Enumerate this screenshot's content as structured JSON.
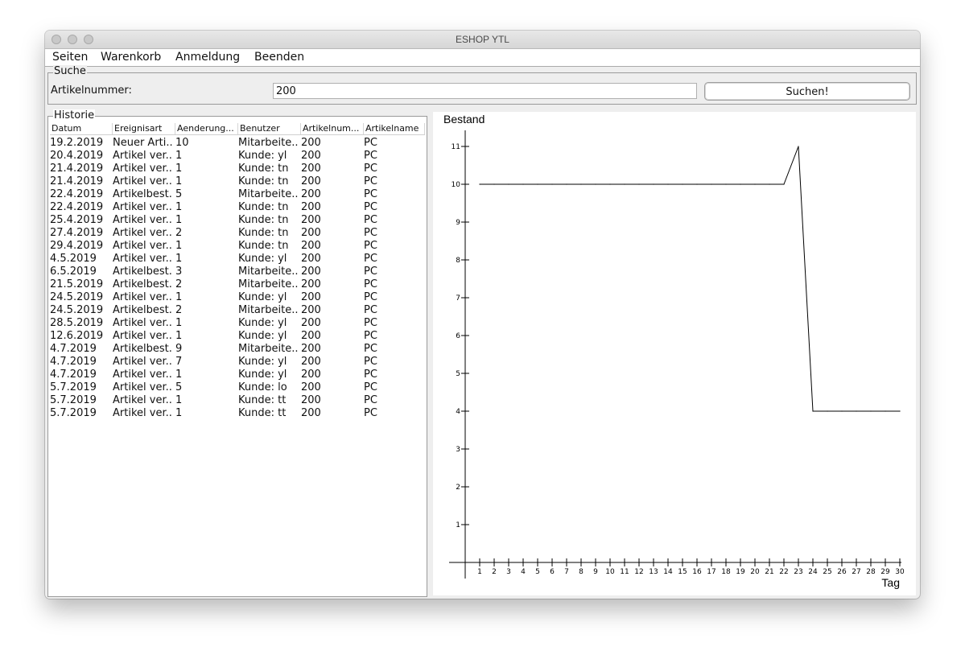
{
  "window": {
    "title": "ESHOP YTL"
  },
  "menu": [
    "Seiten",
    "Warenkorb",
    "Anmeldung",
    "Beenden"
  ],
  "search": {
    "group_title": "Suche",
    "label": "Artikelnummer:",
    "value": "200",
    "button": "Suchen!"
  },
  "history": {
    "group_title": "Historie",
    "columns": [
      "Datum",
      "Ereignisart",
      "Aenderung...",
      "Benutzer",
      "Artikelnum...",
      "Artikelname"
    ],
    "rows": [
      [
        "19.2.2019",
        "Neuer Arti...",
        "10",
        "Mitarbeite...",
        "200",
        "PC"
      ],
      [
        "20.4.2019",
        "Artikel ver...",
        "1",
        "Kunde: yl",
        "200",
        "PC"
      ],
      [
        "21.4.2019",
        "Artikel ver...",
        "1",
        "Kunde: tn",
        "200",
        "PC"
      ],
      [
        "21.4.2019",
        "Artikel ver...",
        "1",
        "Kunde: tn",
        "200",
        "PC"
      ],
      [
        "22.4.2019",
        "Artikelbest...",
        "5",
        "Mitarbeite...",
        "200",
        "PC"
      ],
      [
        "22.4.2019",
        "Artikel ver...",
        "1",
        "Kunde: tn",
        "200",
        "PC"
      ],
      [
        "25.4.2019",
        "Artikel ver...",
        "1",
        "Kunde: tn",
        "200",
        "PC"
      ],
      [
        "27.4.2019",
        "Artikel ver...",
        "2",
        "Kunde: tn",
        "200",
        "PC"
      ],
      [
        "29.4.2019",
        "Artikel ver...",
        "1",
        "Kunde: tn",
        "200",
        "PC"
      ],
      [
        "4.5.2019",
        "Artikel ver...",
        "1",
        "Kunde: yl",
        "200",
        "PC"
      ],
      [
        "6.5.2019",
        "Artikelbest...",
        "3",
        "Mitarbeite...",
        "200",
        "PC"
      ],
      [
        "21.5.2019",
        "Artikelbest...",
        "2",
        "Mitarbeite...",
        "200",
        "PC"
      ],
      [
        "24.5.2019",
        "Artikel ver...",
        "1",
        "Kunde: yl",
        "200",
        "PC"
      ],
      [
        "24.5.2019",
        "Artikelbest...",
        "2",
        "Mitarbeite...",
        "200",
        "PC"
      ],
      [
        "28.5.2019",
        "Artikel ver...",
        "1",
        "Kunde: yl",
        "200",
        "PC"
      ],
      [
        "12.6.2019",
        "Artikel ver...",
        "1",
        "Kunde: yl",
        "200",
        "PC"
      ],
      [
        "4.7.2019",
        "Artikelbest...",
        "9",
        "Mitarbeite...",
        "200",
        "PC"
      ],
      [
        "4.7.2019",
        "Artikel ver...",
        "7",
        "Kunde: yl",
        "200",
        "PC"
      ],
      [
        "4.7.2019",
        "Artikel ver...",
        "1",
        "Kunde: yl",
        "200",
        "PC"
      ],
      [
        "5.7.2019",
        "Artikel ver...",
        "5",
        "Kunde: lo",
        "200",
        "PC"
      ],
      [
        "5.7.2019",
        "Artikel ver...",
        "1",
        "Kunde: tt",
        "200",
        "PC"
      ],
      [
        "5.7.2019",
        "Artikel ver...",
        "1",
        "Kunde: tt",
        "200",
        "PC"
      ]
    ]
  },
  "chart_data": {
    "type": "line",
    "title": "",
    "ylabel": "Bestand",
    "xlabel": "Tag",
    "xlim": [
      0,
      30
    ],
    "ylim": [
      0,
      11
    ],
    "x_ticks": [
      1,
      2,
      3,
      4,
      5,
      6,
      7,
      8,
      9,
      10,
      11,
      12,
      13,
      14,
      15,
      16,
      17,
      18,
      19,
      20,
      21,
      22,
      23,
      24,
      25,
      26,
      27,
      28,
      29,
      30
    ],
    "y_ticks": [
      1,
      2,
      3,
      4,
      5,
      6,
      7,
      8,
      9,
      10,
      11
    ],
    "series": [
      {
        "x": [
          1,
          2,
          3,
          4,
          5,
          6,
          7,
          8,
          9,
          10,
          11,
          12,
          13,
          14,
          15,
          16,
          17,
          18,
          19,
          20,
          21,
          22,
          23,
          24,
          25,
          26,
          27,
          28,
          29,
          30
        ],
        "values": [
          10,
          10,
          10,
          10,
          10,
          10,
          10,
          10,
          10,
          10,
          10,
          10,
          10,
          10,
          10,
          10,
          10,
          10,
          10,
          10,
          10,
          10,
          11,
          4,
          4,
          4,
          4,
          4,
          4,
          4
        ]
      }
    ],
    "grid": false,
    "line_color": "#000000"
  }
}
